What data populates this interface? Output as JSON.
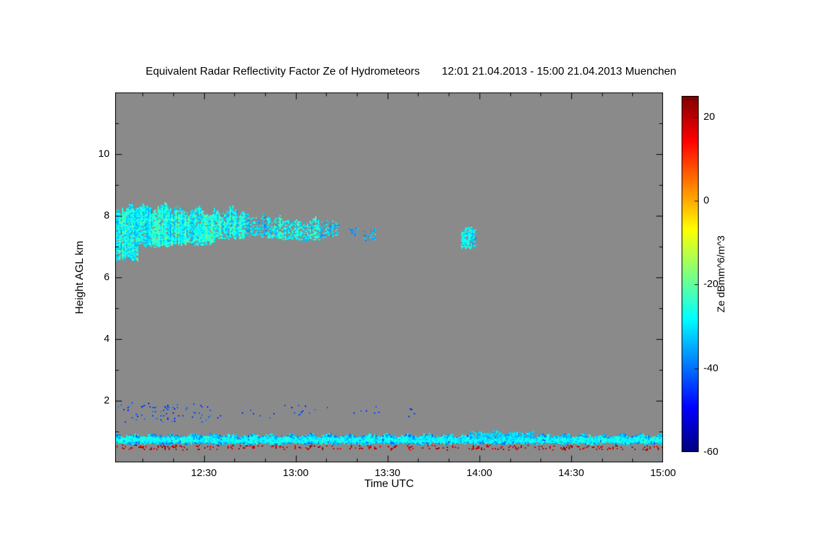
{
  "page": {
    "background": "#ffffff"
  },
  "chart_data": {
    "type": "heatmap",
    "title": "Equivalent Radar Reflectivity Factor Ze of Hydrometeors",
    "subtitle": "12:01 21.04.2013 - 15:00 21.04.2013 Muenchen",
    "xlabel": "Time UTC",
    "ylabel": "Height AGL km",
    "x_range_hours": [
      12.0167,
      15.0
    ],
    "x_ticks": [
      {
        "hour": 12.5,
        "label": "12:30"
      },
      {
        "hour": 13.0,
        "label": "13:00"
      },
      {
        "hour": 13.5,
        "label": "13:30"
      },
      {
        "hour": 14.0,
        "label": "14:00"
      },
      {
        "hour": 14.5,
        "label": "14:30"
      },
      {
        "hour": 15.0,
        "label": "15:00"
      }
    ],
    "x_minor_interval_minutes": 10,
    "y_range_km": [
      0,
      12
    ],
    "y_ticks": [
      2,
      4,
      6,
      8,
      10
    ],
    "y_minor_interval_km": 1,
    "plot_background": "#8a8a8a",
    "colorbar": {
      "label": "Ze dBmm^6/m^3",
      "min": -60,
      "max": 25,
      "ticks": [
        20,
        0,
        -20,
        -40,
        -60
      ],
      "colormap": "jet"
    },
    "features": [
      {
        "name": "cloud-band-left-edge",
        "t": [
          12.0167,
          12.14
        ],
        "h": [
          6.55,
          8.5
        ],
        "density": 0.95,
        "v": [
          -40,
          -18
        ],
        "jitter": 0.25
      },
      {
        "name": "cloud-band-a",
        "t": [
          12.13,
          12.32
        ],
        "h": [
          7.0,
          8.45
        ],
        "density": 0.92,
        "v": [
          -38,
          -18
        ],
        "jitter": 0.2
      },
      {
        "name": "cloud-band-b",
        "t": [
          12.3,
          12.56
        ],
        "h": [
          7.05,
          8.35
        ],
        "density": 0.9,
        "v": [
          -37,
          -16
        ],
        "jitter": 0.2
      },
      {
        "name": "cloud-band-c",
        "t": [
          12.55,
          12.72
        ],
        "h": [
          7.25,
          8.35
        ],
        "density": 0.85,
        "v": [
          -38,
          -18
        ],
        "jitter": 0.2
      },
      {
        "name": "cloud-band-d",
        "t": [
          12.72,
          12.86
        ],
        "h": [
          7.3,
          8.15
        ],
        "density": 0.62,
        "v": [
          -40,
          -22
        ],
        "jitter": 0.18
      },
      {
        "name": "cloud-band-e",
        "t": [
          12.86,
          13.0
        ],
        "h": [
          7.25,
          8.05
        ],
        "density": 0.66,
        "v": [
          -38,
          -20
        ],
        "jitter": 0.18
      },
      {
        "name": "cloud-band-f",
        "t": [
          13.0,
          13.13
        ],
        "h": [
          7.2,
          8.0
        ],
        "density": 0.7,
        "v": [
          -37,
          -18
        ],
        "jitter": 0.18
      },
      {
        "name": "cloud-band-g",
        "t": [
          13.13,
          13.23
        ],
        "h": [
          7.3,
          7.95
        ],
        "density": 0.5,
        "v": [
          -40,
          -24
        ],
        "jitter": 0.15
      },
      {
        "name": "cloud-patch-1",
        "t": [
          13.29,
          13.34
        ],
        "h": [
          7.35,
          7.7
        ],
        "density": 0.45,
        "v": [
          -42,
          -28
        ],
        "jitter": 0.1
      },
      {
        "name": "cloud-patch-2",
        "t": [
          13.37,
          13.43
        ],
        "h": [
          7.2,
          7.62
        ],
        "density": 0.5,
        "v": [
          -42,
          -26
        ],
        "jitter": 0.1
      },
      {
        "name": "cloud-patch-3",
        "t": [
          13.9,
          13.98
        ],
        "h": [
          6.95,
          7.68
        ],
        "density": 0.78,
        "v": [
          -38,
          -22
        ],
        "jitter": 0.12
      },
      {
        "name": "mid-specks-a",
        "t": [
          12.03,
          12.55
        ],
        "h": [
          1.3,
          1.95
        ],
        "density": 0.07,
        "v": [
          -50,
          -36
        ],
        "jitter": 0.05
      },
      {
        "name": "mid-specks-b",
        "t": [
          12.55,
          13.2
        ],
        "h": [
          1.45,
          1.9
        ],
        "density": 0.03,
        "v": [
          -50,
          -38
        ],
        "jitter": 0.05
      },
      {
        "name": "mid-specks-c",
        "t": [
          13.3,
          14.05
        ],
        "h": [
          1.5,
          1.85
        ],
        "density": 0.012,
        "v": [
          -50,
          -40
        ],
        "jitter": 0.05
      },
      {
        "name": "boundary-layer",
        "t": [
          12.0167,
          15.0
        ],
        "h": [
          0.6,
          0.97
        ],
        "density": 0.97,
        "v": [
          -44,
          -22
        ],
        "jitter": 0.09
      },
      {
        "name": "boundary-layer-core",
        "t": [
          12.0167,
          15.0
        ],
        "h": [
          0.66,
          0.86
        ],
        "density": 0.9,
        "v": [
          -33,
          -23
        ],
        "jitter": 0.05
      },
      {
        "name": "boundary-layer-bump",
        "t": [
          13.95,
          14.3
        ],
        "h": [
          0.75,
          1.06
        ],
        "density": 0.7,
        "v": [
          -38,
          -26
        ],
        "jitter": 0.08
      },
      {
        "name": "ground-clutter-specks",
        "t": [
          12.0167,
          15.0
        ],
        "h": [
          0.42,
          0.58
        ],
        "density": 0.2,
        "v": [
          14,
          25
        ],
        "jitter": 0.03
      }
    ]
  }
}
